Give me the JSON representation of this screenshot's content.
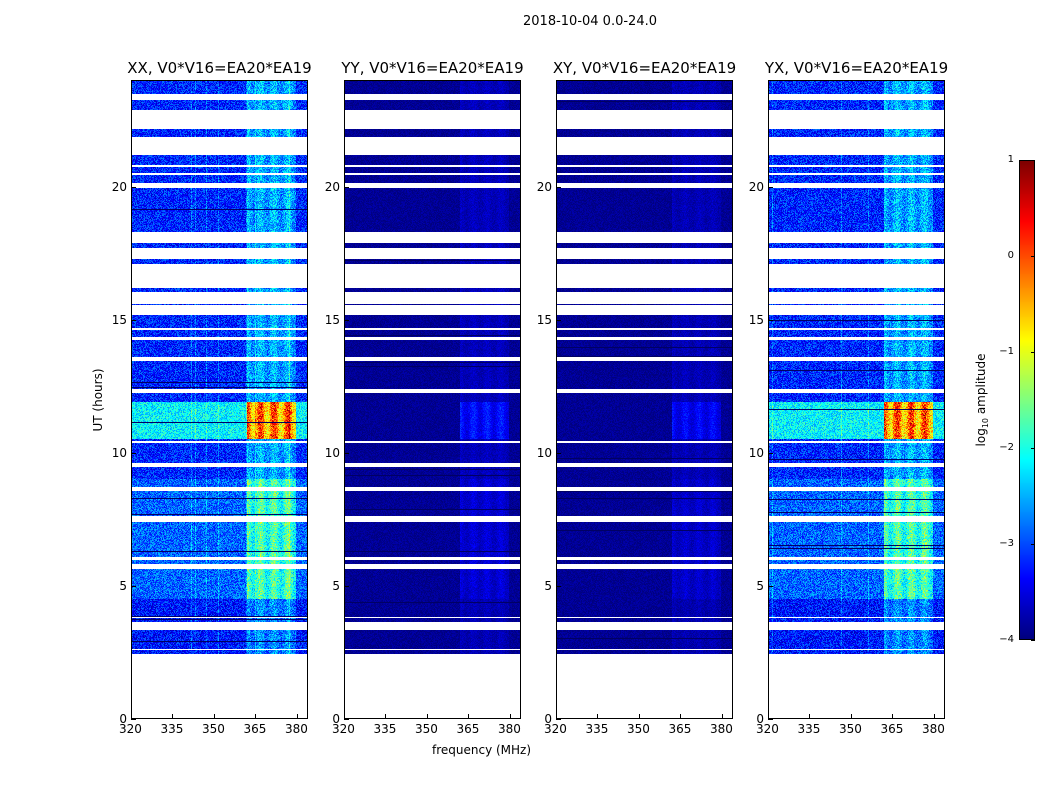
{
  "suptitle": "2018-10-04 0.0-24.0",
  "chart_data": {
    "type": "heatmap",
    "xlabel": "frequency (MHz)",
    "ylabel": "UT (hours)",
    "xlim": [
      320,
      384
    ],
    "ylim": [
      0,
      24
    ],
    "xticks": [
      320,
      335,
      350,
      365,
      380
    ],
    "yticks": [
      0,
      5,
      10,
      15,
      20
    ],
    "colorbar": {
      "label_prefix": "log",
      "label_sub": "10",
      "label_suffix": " amplitude",
      "range": [
        -4,
        1
      ],
      "ticks": [
        -4,
        -3,
        -2,
        -1,
        0,
        1
      ],
      "colormap": "jet"
    },
    "data_start_hour": 2.4,
    "flagged_hours": [
      [
        0,
        2.4
      ],
      [
        2.55,
        2.6
      ],
      [
        3.3,
        3.6
      ],
      [
        3.75,
        3.8
      ],
      [
        5.6,
        5.8
      ],
      [
        5.95,
        6.05
      ],
      [
        7.4,
        7.6
      ],
      [
        8.55,
        8.7
      ],
      [
        9.45,
        9.6
      ],
      [
        10.35,
        10.45
      ],
      [
        12.25,
        12.4
      ],
      [
        13.45,
        13.6
      ],
      [
        14.25,
        14.35
      ],
      [
        14.6,
        14.7
      ],
      [
        15.2,
        15.55
      ],
      [
        15.6,
        16.05
      ],
      [
        16.2,
        17.1
      ],
      [
        17.3,
        17.7
      ],
      [
        17.9,
        18.3
      ],
      [
        19.95,
        20.15
      ],
      [
        20.45,
        20.55
      ],
      [
        20.75,
        20.85
      ],
      [
        21.2,
        21.9
      ],
      [
        22.2,
        22.9
      ],
      [
        23.3,
        23.5
      ]
    ],
    "rfi_band_mhz": [
      362,
      380
    ],
    "active_hours": [
      [
        10.5,
        11.9,
        "strong"
      ],
      [
        4.5,
        9.0,
        "moderate"
      ],
      [
        2.4,
        4.5,
        "weak"
      ]
    ],
    "panels": [
      {
        "title": "XX, V0*V16=EA20*EA19",
        "base_log_amp": -3.2,
        "rfi_peak_log_amp": -0.8
      },
      {
        "title": "YY, V0*V16=EA20*EA19",
        "base_log_amp": -3.9,
        "rfi_peak_log_amp": -3.2
      },
      {
        "title": "XY, V0*V16=EA20*EA19",
        "base_log_amp": -3.9,
        "rfi_peak_log_amp": -3.3
      },
      {
        "title": "YX, V0*V16=EA20*EA19",
        "base_log_amp": -3.2,
        "rfi_peak_log_amp": -0.8
      }
    ]
  }
}
